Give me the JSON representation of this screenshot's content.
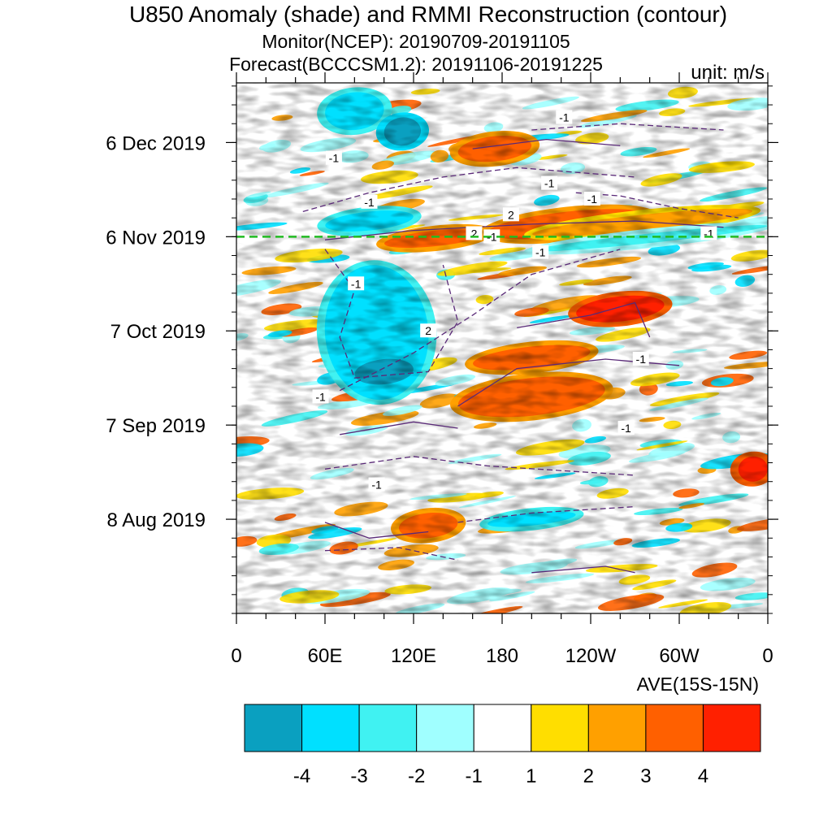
{
  "title": "U850 Anomaly (shade) and RMMI Reconstruction (contour)",
  "subtitle_monitor": "Monitor(NCEP): 20190709-20191105",
  "subtitle_forecast": "Forecast(BCCCSM1.2): 20191106-20191225",
  "unit_label": "unit: m/s",
  "average_label": "AVE(15S-15N)",
  "chart_data": {
    "type": "heatmap",
    "title": "U850 Anomaly (shade) and RMMI Reconstruction (contour)",
    "x_axis": {
      "range_deg_east": [
        0,
        360
      ],
      "ticks": [
        {
          "lon": 0,
          "label": "0"
        },
        {
          "lon": 60,
          "label": "60E"
        },
        {
          "lon": 120,
          "label": "120E"
        },
        {
          "lon": 180,
          "label": "180"
        },
        {
          "lon": 240,
          "label": "120W"
        },
        {
          "lon": 300,
          "label": "60W"
        },
        {
          "lon": 360,
          "label": "0"
        }
      ]
    },
    "y_axis": {
      "range": [
        "2019-07-09",
        "2019-12-25"
      ],
      "ticks": [
        {
          "date": "2019-08-08",
          "label": "8 Aug 2019"
        },
        {
          "date": "2019-09-07",
          "label": "7 Sep 2019"
        },
        {
          "date": "2019-10-07",
          "label": "7 Oct 2019"
        },
        {
          "date": "2019-11-06",
          "label": "6 Nov 2019"
        },
        {
          "date": "2019-12-06",
          "label": "6 Dec 2019"
        }
      ]
    },
    "forecast_start_line": {
      "date": "2019-11-06",
      "color": "#22bb22",
      "style": "dashed"
    },
    "colorbar": {
      "levels": [
        "-4",
        "-3",
        "-2",
        "-1",
        "1",
        "2",
        "3",
        "4"
      ],
      "colors": [
        "#0aa0c0",
        "#00e0ff",
        "#40f2f2",
        "#a0ffff",
        "#ffffff",
        "#ffde00",
        "#ffa000",
        "#ff6000",
        "#ff2000"
      ]
    },
    "shade_features": [
      {
        "lon": [
          60,
          100
        ],
        "date": [
          "2019-12-10",
          "2019-12-22"
        ],
        "value": -3
      },
      {
        "lon": [
          100,
          125
        ],
        "date": [
          "2019-12-05",
          "2019-12-14"
        ],
        "value": -4
      },
      {
        "lon": [
          150,
          200
        ],
        "date": [
          "2019-11-30",
          "2019-12-08"
        ],
        "value": 3
      },
      {
        "lon": [
          60,
          120
        ],
        "date": [
          "2019-11-08",
          "2019-11-14"
        ],
        "value": -3
      },
      {
        "lon": [
          100,
          170
        ],
        "date": [
          "2019-11-03",
          "2019-11-08"
        ],
        "value": 3
      },
      {
        "lon": [
          170,
          280
        ],
        "date": [
          "2019-11-06",
          "2019-11-14"
        ],
        "value": 3
      },
      {
        "lon": [
          200,
          350
        ],
        "date": [
          "2019-11-08",
          "2019-11-13"
        ],
        "value": 2
      },
      {
        "lon": [
          200,
          360
        ],
        "date": [
          "2019-11-04",
          "2019-11-07"
        ],
        "value": -2
      },
      {
        "lon": [
          60,
          130
        ],
        "date": [
          "2019-09-15",
          "2019-10-28"
        ],
        "value": -3
      },
      {
        "lon": [
          80,
          120
        ],
        "date": [
          "2019-09-20",
          "2019-09-28"
        ],
        "value": -4
      },
      {
        "lon": [
          150,
          250
        ],
        "date": [
          "2019-09-10",
          "2019-09-22"
        ],
        "value": 3
      },
      {
        "lon": [
          230,
          290
        ],
        "date": [
          "2019-10-10",
          "2019-10-18"
        ],
        "value": 4
      },
      {
        "lon": [
          160,
          240
        ],
        "date": [
          "2019-09-25",
          "2019-10-02"
        ],
        "value": 3
      },
      {
        "lon": [
          340,
          360
        ],
        "date": [
          "2019-08-20",
          "2019-08-28"
        ],
        "value": 4
      },
      {
        "lon": [
          110,
          150
        ],
        "date": [
          "2019-08-02",
          "2019-08-10"
        ],
        "value": 3
      },
      {
        "lon": [
          170,
          230
        ],
        "date": [
          "2019-08-06",
          "2019-08-10"
        ],
        "value": -3
      }
    ],
    "contours": [
      {
        "level": 2,
        "label": "2",
        "style": "solid"
      },
      {
        "level": -1,
        "label": "-1",
        "style": "dashed"
      }
    ],
    "contour_labels": [
      "-1",
      "-1",
      "-1",
      "-1",
      "-1",
      "2",
      "2",
      "-1",
      "-1",
      "-1",
      "-1",
      "2",
      "-1",
      "-1",
      "-1",
      "-1"
    ]
  }
}
